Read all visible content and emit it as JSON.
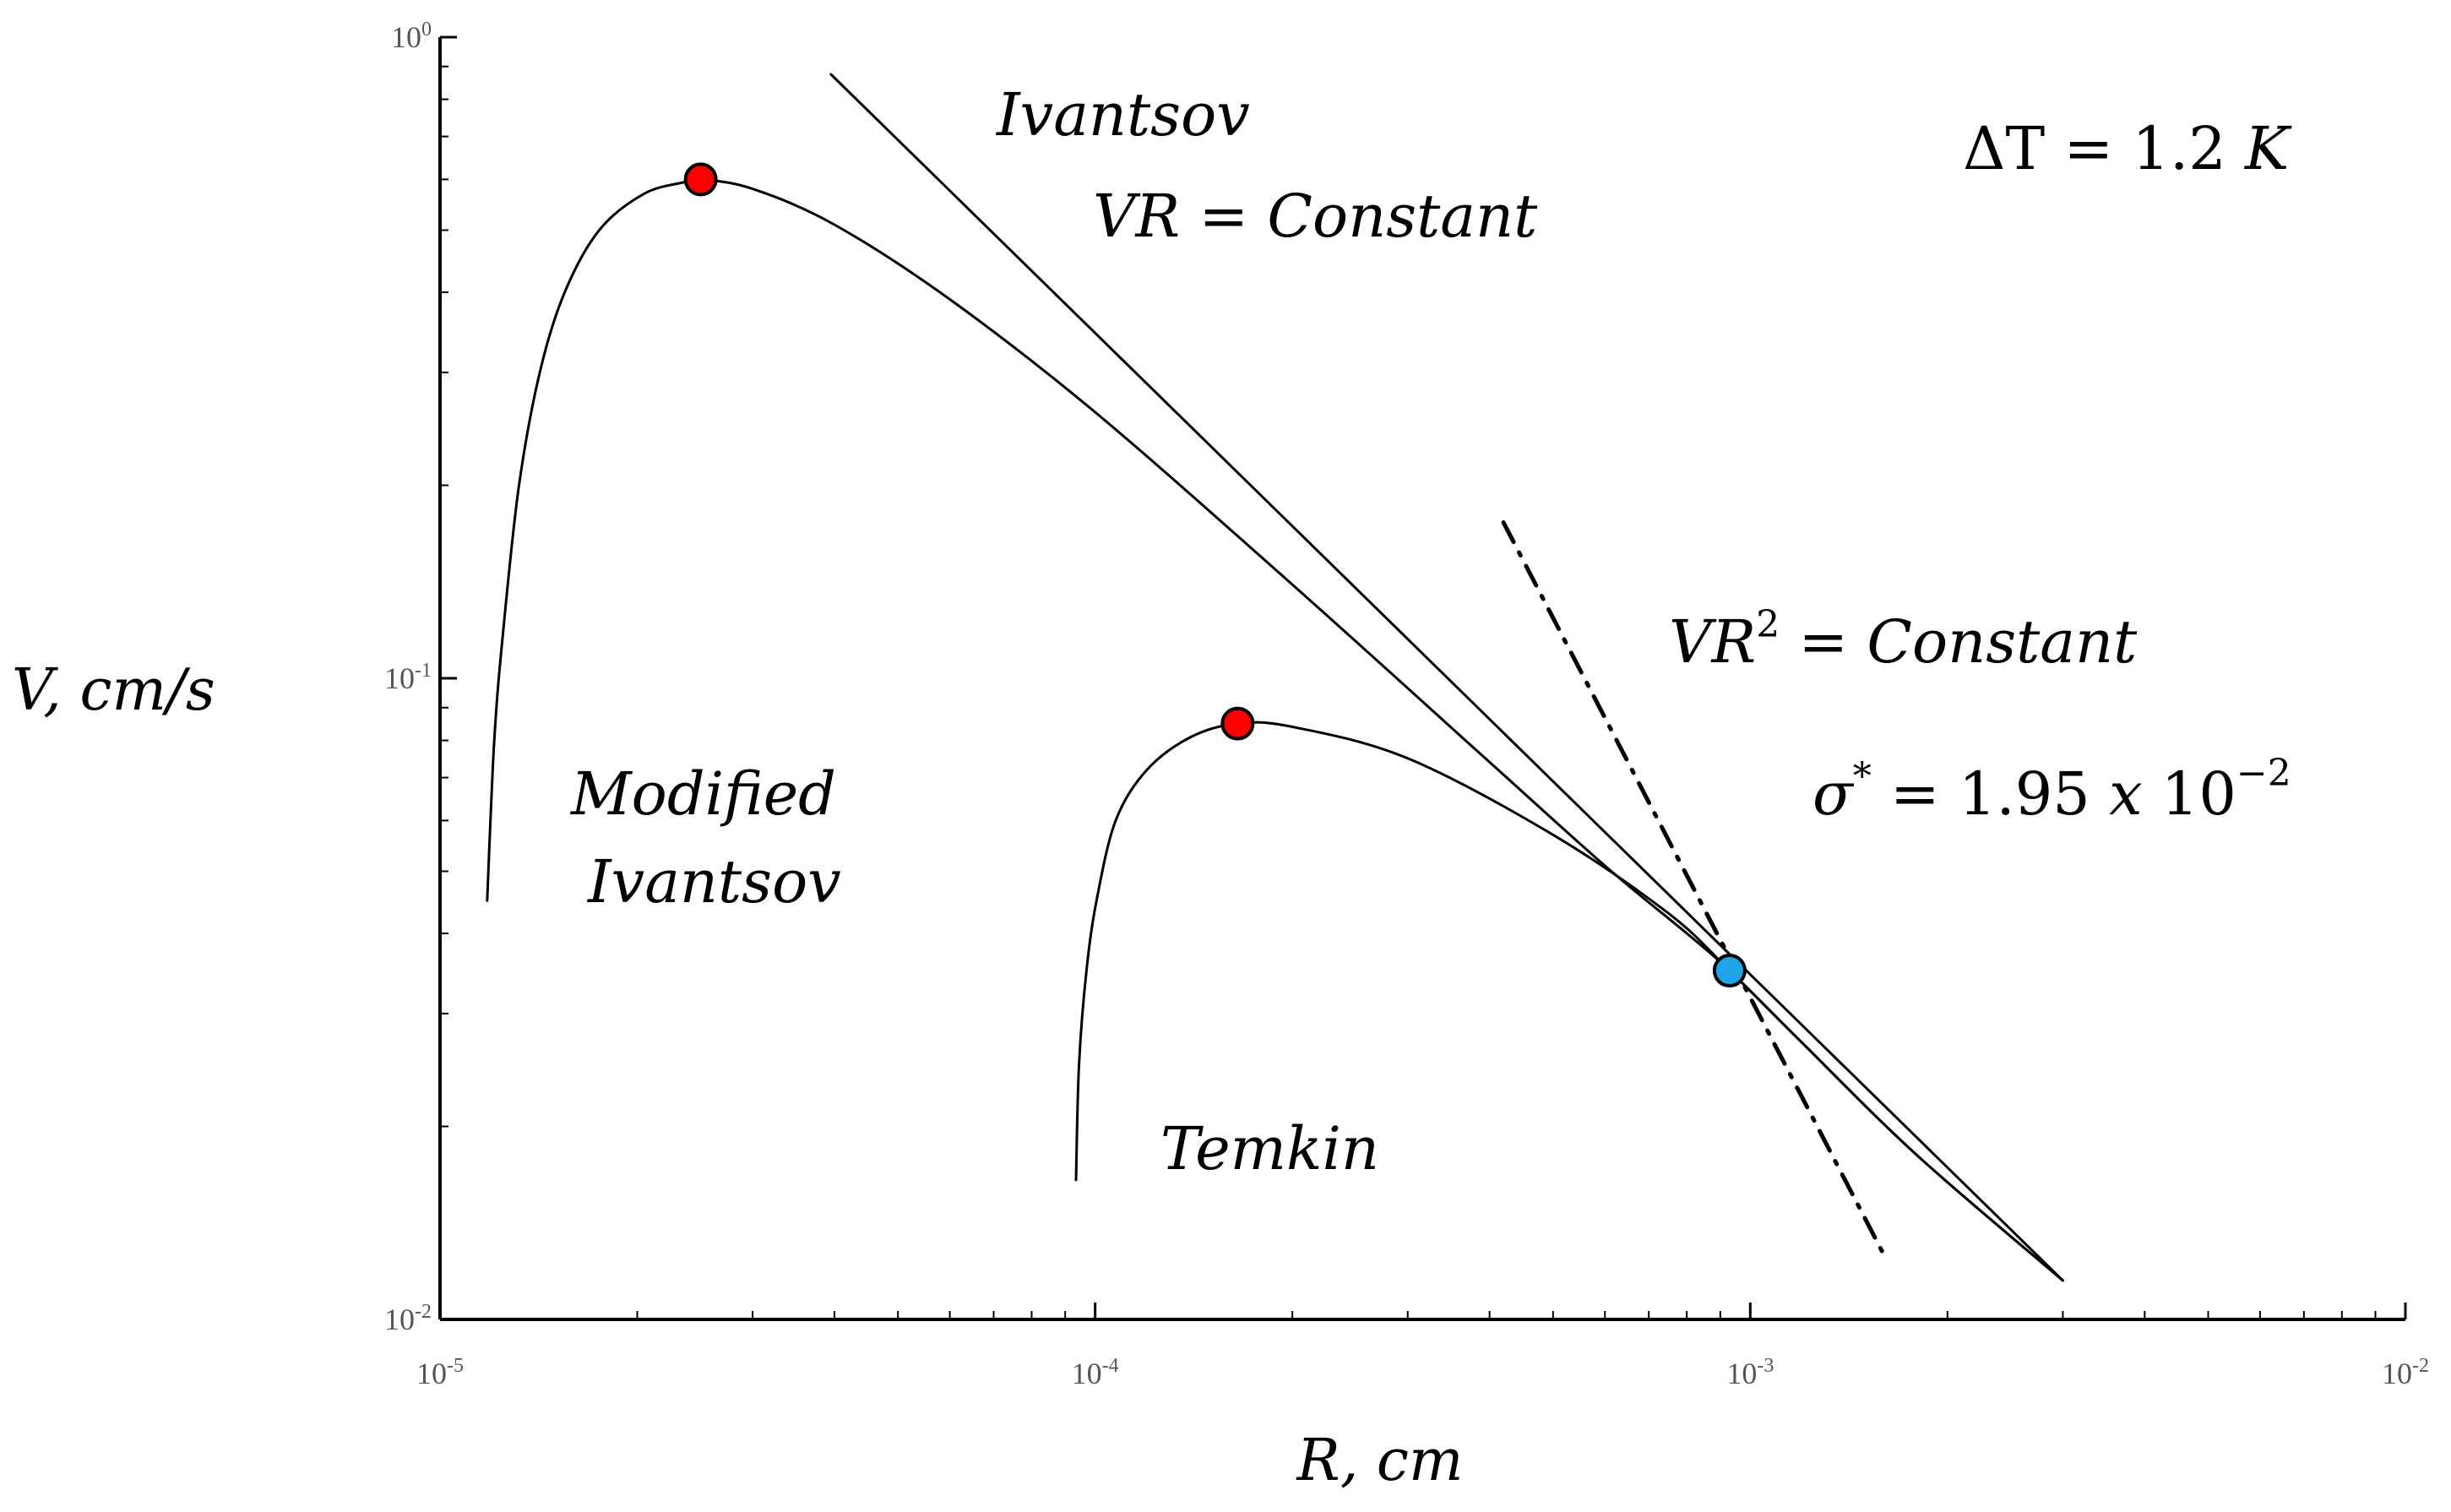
{
  "chart_data": {
    "type": "line",
    "xscale": "log",
    "yscale": "log",
    "xlim": [
      1e-05,
      0.01
    ],
    "ylim": [
      0.01,
      1
    ],
    "xlabel": "R, cm",
    "ylabel": "V, cm/s",
    "x_ticks": [
      {
        "value": 1e-05,
        "base": "10",
        "exp": "-5"
      },
      {
        "value": 0.0001,
        "base": "10",
        "exp": "-4"
      },
      {
        "value": 0.001,
        "base": "10",
        "exp": "-3"
      },
      {
        "value": 0.01,
        "base": "10",
        "exp": "-2"
      }
    ],
    "y_ticks": [
      {
        "value": 0.01,
        "base": "10",
        "exp": "-2"
      },
      {
        "value": 0.1,
        "base": "10",
        "exp": "-1"
      },
      {
        "value": 1,
        "base": "10",
        "exp": "0"
      }
    ],
    "grid": false,
    "series": [
      {
        "name": "Modified Ivantsov",
        "style": "solid",
        "points": [
          [
            1.18e-05,
            0.045
          ],
          [
            1.21e-05,
            0.08
          ],
          [
            1.25e-05,
            0.12
          ],
          [
            1.32e-05,
            0.2
          ],
          [
            1.42e-05,
            0.3
          ],
          [
            1.55e-05,
            0.4
          ],
          [
            1.75e-05,
            0.5
          ],
          [
            2.05e-05,
            0.57
          ],
          [
            2.38e-05,
            0.595
          ],
          [
            2.5e-05,
            0.6
          ],
          [
            3e-05,
            0.58
          ],
          [
            4e-05,
            0.51
          ],
          [
            6e-05,
            0.39
          ],
          [
            0.0001,
            0.26
          ],
          [
            0.0002,
            0.14
          ],
          [
            0.0004,
            0.074
          ],
          [
            0.0006,
            0.051
          ],
          [
            0.0008,
            0.04
          ],
          [
            0.00093,
            0.035
          ],
          [
            0.0012,
            0.027
          ],
          [
            0.0018,
            0.018
          ],
          [
            0.003,
            0.0115
          ]
        ]
      },
      {
        "name": "Ivantsov",
        "style": "solid",
        "points": [
          [
            3.95e-05,
            0.875
          ],
          [
            0.003,
            0.0115
          ]
        ]
      },
      {
        "name": "Temkin",
        "style": "solid",
        "points": [
          [
            9.35e-05,
            0.0165
          ],
          [
            9.45e-05,
            0.025
          ],
          [
            9.7e-05,
            0.035
          ],
          [
            0.0001005,
            0.045
          ],
          [
            0.0001075,
            0.06
          ],
          [
            0.00012,
            0.072
          ],
          [
            0.00014,
            0.081
          ],
          [
            0.000165,
            0.085
          ],
          [
            0.0002,
            0.084
          ],
          [
            0.0003,
            0.075
          ],
          [
            0.0005,
            0.057
          ],
          [
            0.00075,
            0.043
          ],
          [
            0.00093,
            0.035
          ],
          [
            0.0012,
            0.027
          ],
          [
            0.0018,
            0.018
          ],
          [
            0.003,
            0.0115
          ]
        ]
      },
      {
        "name": "VR^2 = Constant",
        "style": "dash-dot",
        "points": [
          [
            0.00042,
            0.175
          ],
          [
            0.0016,
            0.0126
          ]
        ]
      }
    ],
    "markers": [
      {
        "name": "modified-ivantsov-max",
        "x": 2.5e-05,
        "y": 0.6,
        "color": "#ff0000"
      },
      {
        "name": "temkin-max",
        "x": 0.000165,
        "y": 0.085,
        "color": "#ff0000"
      },
      {
        "name": "operating-point",
        "x": 0.00093,
        "y": 0.035,
        "color": "#1fa6e8"
      }
    ]
  },
  "annotations": {
    "ivantsov": "Ivantsov",
    "vr_constant": "VR = Constant",
    "delta_t": {
      "symbol": "ΔT",
      "rest": " = 1.2 ",
      "unit": "K"
    },
    "vr2_constant": {
      "base": "VR",
      "exp": "2",
      "rest": " = Constant"
    },
    "sigma": {
      "symbol": "σ",
      "sup": "*",
      "rest": " = 1.95 ",
      "x": "x",
      "ten": " 10",
      "exp": "−2"
    },
    "modified": "Modified",
    "modified_ivantsov": "Ivantsov",
    "temkin": "Temkin"
  }
}
